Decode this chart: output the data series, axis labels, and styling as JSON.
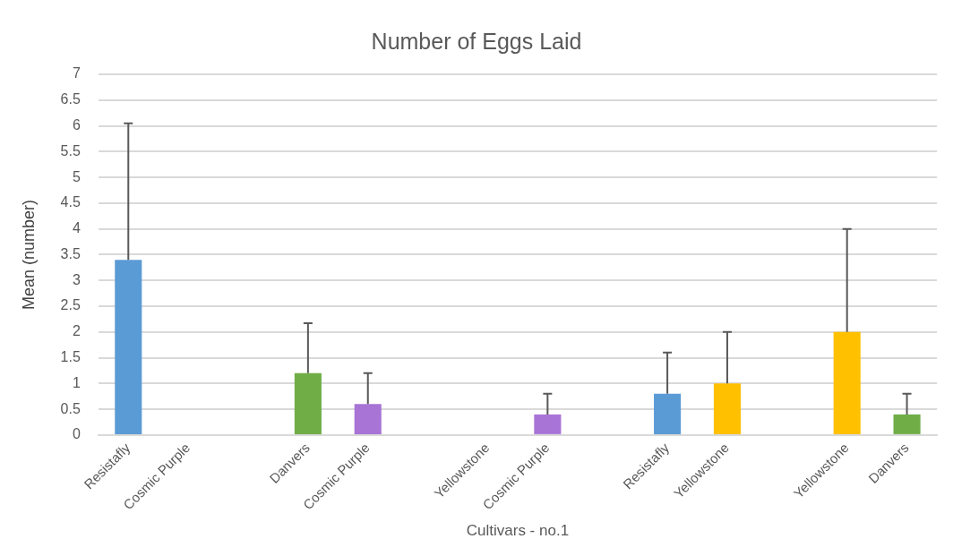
{
  "chart_data": {
    "type": "bar",
    "title": "Number of Eggs Laid",
    "xlabel": "Cultivars - no.1",
    "ylabel": "Mean (number)",
    "categories": [
      "Resistafly",
      "Cosmic Purple",
      null,
      "Danvers",
      "Cosmic Purple",
      null,
      "Yellowstone",
      "Cosmic Purple",
      null,
      "Resistafly",
      "Yellowstone",
      null,
      "Yellowstone",
      "Danvers"
    ],
    "values": [
      3.4,
      0,
      null,
      1.2,
      0.6,
      null,
      0,
      0.4,
      null,
      0.8,
      1.0,
      null,
      2.0,
      0.4
    ],
    "colors": [
      "#5b9bd5",
      "#a874d6",
      "#ffffff",
      "#70ad47",
      "#a874d6",
      "#ffffff",
      "#ffc000",
      "#a874d6",
      "#ffffff",
      "#5b9bd5",
      "#ffc000",
      "#ffffff",
      "#ffc000",
      "#70ad47"
    ],
    "errors": [
      [
        3.4,
        6.05
      ],
      null,
      null,
      [
        1.2,
        2.17
      ],
      [
        0.6,
        1.2
      ],
      null,
      null,
      [
        0.4,
        0.8
      ],
      null,
      [
        0.8,
        1.6
      ],
      [
        1.0,
        2.0
      ],
      null,
      [
        2.0,
        4.0
      ],
      [
        0.4,
        0.8
      ]
    ],
    "ylim": [
      0,
      7
    ],
    "yticks": [
      0,
      0.5,
      1,
      1.5,
      2,
      2.5,
      3,
      3.5,
      4,
      4.5,
      5,
      5.5,
      6,
      6.5,
      7
    ],
    "grid": "y",
    "legend": false
  }
}
